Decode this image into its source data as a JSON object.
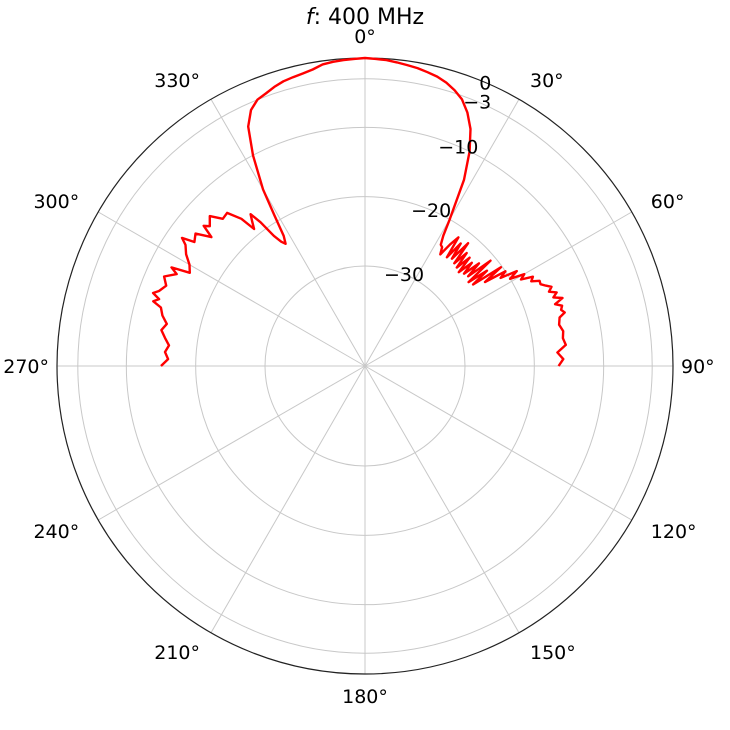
{
  "chart_data": {
    "type": "line",
    "projection": "polar",
    "title": {
      "prefix": "f",
      "text": ": 400 MHz"
    },
    "theta_zero": "top",
    "theta_direction": "clockwise",
    "theta_ticks": [
      0,
      30,
      60,
      90,
      120,
      150,
      180,
      210,
      240,
      270,
      300,
      330
    ],
    "theta_tick_labels": [
      "0°",
      "30°",
      "60°",
      "90°",
      "120°",
      "150°",
      "180°",
      "210°",
      "240°",
      "270°",
      "300°",
      "330°"
    ],
    "r_range": [
      -30,
      0
    ],
    "r_ticks": [
      -30,
      -20,
      -10,
      -3,
      0
    ],
    "r_tick_labels": [
      "−30",
      "−20",
      "−10",
      "−3",
      "0"
    ],
    "r_label_angle_deg": 23,
    "grid": true,
    "series": [
      {
        "color": "#ff0000",
        "theta_deg": [
          -90,
          -88,
          -86,
          -84,
          -82,
          -80,
          -78,
          -76,
          -74,
          -73,
          -72,
          -71,
          -70,
          -68,
          -66,
          -64,
          -63,
          -62,
          -60,
          -58,
          -56,
          -55,
          -54,
          -52,
          -50,
          -49,
          -48,
          -46,
          -44,
          -42,
          -40,
          -39,
          -38,
          -37,
          -36,
          -35,
          -34,
          -33,
          -32,
          -31,
          -30,
          -28,
          -26,
          -24,
          -22,
          -20,
          -18,
          -16,
          -14,
          -12,
          -10,
          -8,
          -6,
          -4,
          -2,
          0,
          2,
          4,
          6,
          8,
          10,
          12,
          14,
          16,
          18,
          20,
          22,
          24,
          26,
          28,
          30,
          31,
          32,
          33,
          34,
          35,
          36,
          37,
          38,
          39,
          40,
          41,
          42,
          43,
          44,
          45,
          46,
          47,
          48,
          49,
          50,
          51,
          52,
          53,
          54,
          55,
          56,
          57,
          58,
          59,
          60,
          61,
          62,
          63,
          64,
          65,
          66,
          67,
          68,
          69,
          70,
          71,
          72,
          73,
          74,
          75,
          76,
          78,
          80,
          82,
          84,
          86,
          88,
          90
        ],
        "values": [
          -15,
          -16,
          -15.5,
          -16,
          -15.3,
          -14.6,
          -15.2,
          -14.3,
          -13.8,
          -12.5,
          -13.2,
          -12.1,
          -12.8,
          -13.5,
          -12.7,
          -14.2,
          -13.1,
          -15.8,
          -15.2,
          -14,
          -13.2,
          -12.2,
          -14,
          -13.4,
          -15.5,
          -13.6,
          -14.3,
          -13.3,
          -14.9,
          -14.7,
          -16.7,
          -19,
          -18,
          -17,
          -18.8,
          -21.5,
          -22.8,
          -23.4,
          -22.3,
          -19,
          -15,
          -10,
          -6,
          -4,
          -3,
          -2.6,
          -2.1,
          -1.7,
          -1.5,
          -1.3,
          -1,
          -0.5,
          -0.3,
          -0.2,
          -0.1,
          0,
          -0.1,
          -0.2,
          -0.4,
          -0.6,
          -0.8,
          -1.1,
          -1.4,
          -1.9,
          -2.6,
          -3.5,
          -5,
          -7,
          -10,
          -14,
          -20,
          -22.5,
          -23.8,
          -24,
          -25,
          -23,
          -21.5,
          -24.8,
          -22,
          -24.5,
          -21.3,
          -24.8,
          -22.5,
          -25,
          -22.7,
          -25.3,
          -23,
          -24.9,
          -22.3,
          -24.7,
          -20.8,
          -25.2,
          -22.1,
          -24.9,
          -20.2,
          -23.3,
          -20,
          -21.1,
          -18.6,
          -20,
          -17.9,
          -18.7,
          -17,
          -17.5,
          -16.4,
          -16.5,
          -15.9,
          -15.2,
          -15.8,
          -14.8,
          -15.5,
          -14.3,
          -15.6,
          -14.7,
          -15,
          -14.6,
          -15.5,
          -15.8,
          -15.4,
          -15.6,
          -15.3,
          -16.6,
          -15.8,
          -16.5
        ]
      }
    ]
  }
}
